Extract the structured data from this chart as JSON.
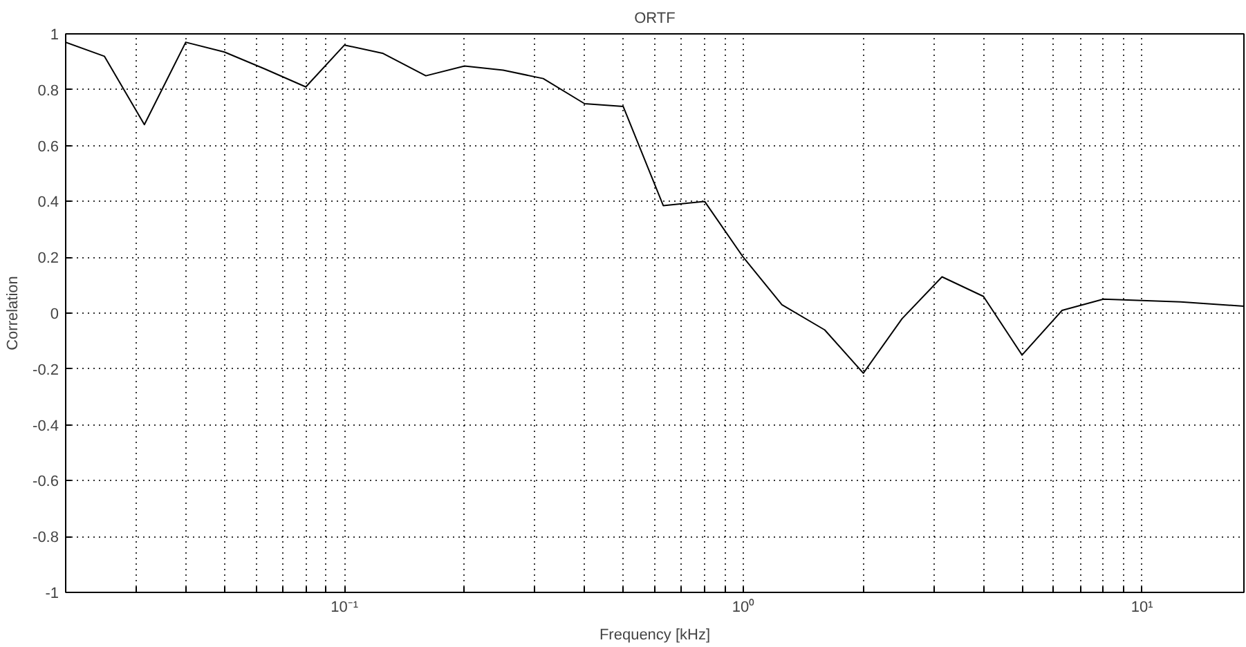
{
  "chart_data": {
    "type": "line",
    "title": "ORTF",
    "xlabel": "Frequency [kHz]",
    "ylabel": "Correlation",
    "log": "x",
    "grid": true,
    "marker": "none",
    "line_style": "solid",
    "x": [
      0.02,
      0.025,
      0.0315,
      0.04,
      0.05,
      0.063,
      0.08,
      0.1,
      0.125,
      0.16,
      0.2,
      0.25,
      0.315,
      0.4,
      0.5,
      0.63,
      0.8,
      1.0,
      1.25,
      1.6,
      2.0,
      2.5,
      3.15,
      4.0,
      5.0,
      6.3,
      8.0,
      10.0,
      12.5,
      18.0
    ],
    "series": [
      {
        "color": "#000000",
        "values": [
          0.97,
          0.92,
          0.675,
          0.97,
          0.935,
          0.875,
          0.81,
          0.96,
          0.93,
          0.85,
          0.885,
          0.87,
          0.84,
          0.75,
          0.74,
          0.385,
          0.4,
          0.2,
          0.03,
          -0.06,
          -0.215,
          -0.02,
          0.13,
          0.06,
          -0.15,
          0.01,
          0.05,
          0.045,
          0.04,
          0.025
        ]
      }
    ],
    "xlim": [
      0.02,
      18
    ],
    "ylim": [
      -1,
      1
    ],
    "xticks": [
      {
        "value": 0.03,
        "label": null
      },
      {
        "value": 0.04,
        "label": null
      },
      {
        "value": 0.05,
        "label": null
      },
      {
        "value": 0.06,
        "label": null
      },
      {
        "value": 0.07,
        "label": null
      },
      {
        "value": 0.08,
        "label": null
      },
      {
        "value": 0.09,
        "label": null
      },
      {
        "value": 0.1,
        "label": "10⁻¹"
      },
      {
        "value": 0.2,
        "label": null
      },
      {
        "value": 0.3,
        "label": null
      },
      {
        "value": 0.4,
        "label": null
      },
      {
        "value": 0.5,
        "label": null
      },
      {
        "value": 0.6,
        "label": null
      },
      {
        "value": 0.7,
        "label": null
      },
      {
        "value": 0.8,
        "label": null
      },
      {
        "value": 0.9,
        "label": null
      },
      {
        "value": 1,
        "label": "10⁰"
      },
      {
        "value": 2,
        "label": null
      },
      {
        "value": 3,
        "label": null
      },
      {
        "value": 4,
        "label": null
      },
      {
        "value": 5,
        "label": null
      },
      {
        "value": 6,
        "label": null
      },
      {
        "value": 7,
        "label": null
      },
      {
        "value": 8,
        "label": null
      },
      {
        "value": 9,
        "label": null
      },
      {
        "value": 10,
        "label": "10¹"
      }
    ],
    "yticks": [
      -1,
      -0.8,
      -0.6,
      -0.4,
      -0.2,
      0,
      0.2,
      0.4,
      0.6,
      0.8,
      1
    ]
  }
}
